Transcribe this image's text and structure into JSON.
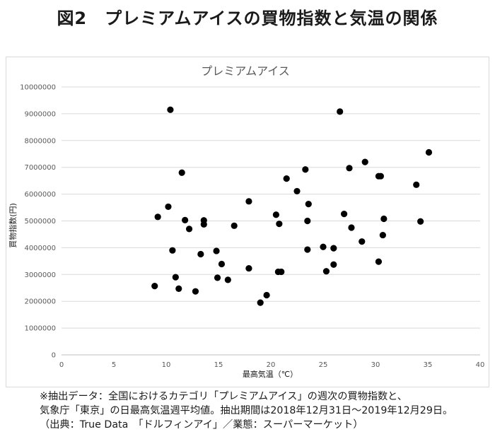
{
  "page": {
    "title": "図2　プレミアムアイスの買物指数と気温の関係",
    "caption": {
      "line1": "※抽出データ：全国におけるカテゴリ「プレミアムアイス」の週次の買物指数と、",
      "line2": "気象庁「東京」の日最高気温週平均値。抽出期間は2018年12月31日～2019年12月29日。",
      "line3": "（出典：True Data　「ドルフィンアイ」／業態：スーパーマーケット）"
    }
  },
  "chart_data": {
    "type": "scatter",
    "title": "プレミアムアイス",
    "xlabel": "最高気温（℃）",
    "ylabel": "買物指数(円)",
    "xlim": [
      0,
      40
    ],
    "ylim": [
      0,
      10000000
    ],
    "x_ticks": [
      0,
      5,
      10,
      15,
      20,
      25,
      30,
      35,
      40
    ],
    "y_ticks": [
      0,
      1000000,
      2000000,
      3000000,
      4000000,
      5000000,
      6000000,
      7000000,
      8000000,
      9000000,
      10000000
    ],
    "grid": "horizontal",
    "marker_color": "#000000",
    "points": [
      [
        8.9,
        2570000
      ],
      [
        9.2,
        5150000
      ],
      [
        10.2,
        5530000
      ],
      [
        10.4,
        9150000
      ],
      [
        10.6,
        3900000
      ],
      [
        10.9,
        2900000
      ],
      [
        11.2,
        2470000
      ],
      [
        11.5,
        6800000
      ],
      [
        11.8,
        5030000
      ],
      [
        12.2,
        4700000
      ],
      [
        12.8,
        2370000
      ],
      [
        13.3,
        3760000
      ],
      [
        13.6,
        4870000
      ],
      [
        13.6,
        5020000
      ],
      [
        14.8,
        3880000
      ],
      [
        14.9,
        2880000
      ],
      [
        15.3,
        3390000
      ],
      [
        15.9,
        2800000
      ],
      [
        16.5,
        4820000
      ],
      [
        17.9,
        5730000
      ],
      [
        17.9,
        3230000
      ],
      [
        19.0,
        1950000
      ],
      [
        19.6,
        2230000
      ],
      [
        20.5,
        5230000
      ],
      [
        20.7,
        3100000
      ],
      [
        20.8,
        4890000
      ],
      [
        21.0,
        3100000
      ],
      [
        21.5,
        6580000
      ],
      [
        22.5,
        6110000
      ],
      [
        23.3,
        6920000
      ],
      [
        23.5,
        5000000
      ],
      [
        23.5,
        3930000
      ],
      [
        23.6,
        5630000
      ],
      [
        25.0,
        4030000
      ],
      [
        25.3,
        3120000
      ],
      [
        26.0,
        3980000
      ],
      [
        26.0,
        3370000
      ],
      [
        26.6,
        9080000
      ],
      [
        27.0,
        5260000
      ],
      [
        27.5,
        6970000
      ],
      [
        27.7,
        4750000
      ],
      [
        28.7,
        4230000
      ],
      [
        29.0,
        7200000
      ],
      [
        30.3,
        6670000
      ],
      [
        30.3,
        3480000
      ],
      [
        30.5,
        6670000
      ],
      [
        30.7,
        4470000
      ],
      [
        30.8,
        5080000
      ],
      [
        33.9,
        6350000
      ],
      [
        34.3,
        4980000
      ],
      [
        35.1,
        7560000
      ]
    ]
  }
}
